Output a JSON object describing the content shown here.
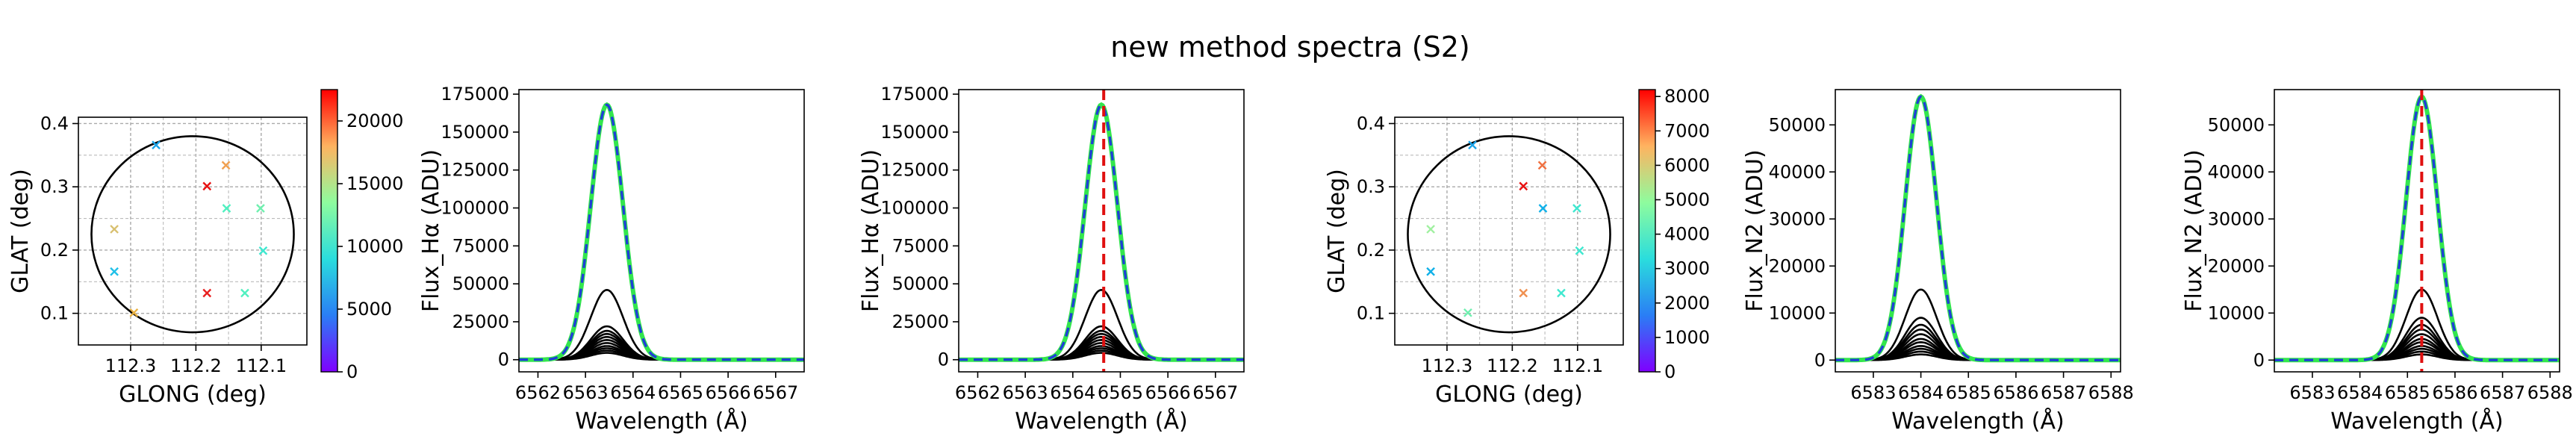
{
  "figure_title": "new method spectra (S2)",
  "chart_data": [
    {
      "id": "map_ha",
      "type": "scatter",
      "xlabel": "GLONG (deg)",
      "ylabel": "GLAT (deg)",
      "xlim": [
        112.38,
        112.03
      ],
      "ylim": [
        0.05,
        0.41
      ],
      "xticks": [
        112.3,
        112.2,
        112.1
      ],
      "yticks": [
        0.1,
        0.2,
        0.3,
        0.4
      ],
      "grid": true,
      "circle": {
        "cx": 112.205,
        "cy": 0.225,
        "r": 0.155
      },
      "points": [
        {
          "x": 112.261,
          "y": 0.366,
          "color": "#1aa3e8"
        },
        {
          "x": 112.154,
          "y": 0.334,
          "color": "#f0a050"
        },
        {
          "x": 112.183,
          "y": 0.301,
          "color": "#e81010"
        },
        {
          "x": 112.101,
          "y": 0.266,
          "color": "#70f0b0"
        },
        {
          "x": 112.153,
          "y": 0.266,
          "color": "#50f0c0"
        },
        {
          "x": 112.325,
          "y": 0.233,
          "color": "#d8c070"
        },
        {
          "x": 112.097,
          "y": 0.199,
          "color": "#40e8d0"
        },
        {
          "x": 112.325,
          "y": 0.166,
          "color": "#20c0e8"
        },
        {
          "x": 112.125,
          "y": 0.132,
          "color": "#50f0c0"
        },
        {
          "x": 112.183,
          "y": 0.132,
          "color": "#e82020"
        },
        {
          "x": 112.295,
          "y": 0.101,
          "color": "#e8b040"
        }
      ],
      "colorbar": {
        "min": 0,
        "max": 22500,
        "ticks": [
          0,
          5000,
          10000,
          15000,
          20000
        ]
      }
    },
    {
      "id": "flux_ha_a",
      "type": "line",
      "xlabel": "Wavelength (Å)",
      "ylabel": "Flux_Hα (ADU)",
      "xlim": [
        6561.6,
        6567.6
      ],
      "ylim": [
        -8000,
        178000
      ],
      "xticks": [
        6562,
        6563,
        6564,
        6565,
        6566,
        6567
      ],
      "yticks": [
        0,
        25000,
        50000,
        75000,
        100000,
        125000,
        150000,
        175000
      ],
      "center": 6563.45,
      "sigma": 0.34,
      "black_peaks": [
        46000,
        22000,
        19000,
        17000,
        15000,
        13000,
        11000,
        9000,
        7500,
        6000,
        4500
      ],
      "total_peak": 168000,
      "vline": null
    },
    {
      "id": "flux_ha_b",
      "type": "line",
      "xlabel": "Wavelength (Å)",
      "ylabel": "Flux_Hα (ADU)",
      "xlim": [
        6561.6,
        6567.6
      ],
      "ylim": [
        -8000,
        178000
      ],
      "xticks": [
        6562,
        6563,
        6564,
        6565,
        6566,
        6567
      ],
      "yticks": [
        0,
        25000,
        50000,
        75000,
        100000,
        125000,
        150000,
        175000
      ],
      "center": 6564.6,
      "sigma": 0.34,
      "black_peaks": [
        46000,
        22000,
        19000,
        17000,
        15000,
        13000,
        11000,
        9000,
        7500,
        6000,
        4500
      ],
      "total_peak": 168000,
      "vline": 6564.65
    },
    {
      "id": "map_n2",
      "type": "scatter",
      "xlabel": "GLONG (deg)",
      "ylabel": "GLAT (deg)",
      "xlim": [
        112.38,
        112.03
      ],
      "ylim": [
        0.05,
        0.41
      ],
      "xticks": [
        112.3,
        112.2,
        112.1
      ],
      "yticks": [
        0.1,
        0.2,
        0.3,
        0.4
      ],
      "grid": true,
      "circle": {
        "cx": 112.205,
        "cy": 0.225,
        "r": 0.155
      },
      "points": [
        {
          "x": 112.261,
          "y": 0.366,
          "color": "#1aa3e8"
        },
        {
          "x": 112.154,
          "y": 0.334,
          "color": "#f07040"
        },
        {
          "x": 112.183,
          "y": 0.301,
          "color": "#e81010"
        },
        {
          "x": 112.101,
          "y": 0.266,
          "color": "#40e8d0"
        },
        {
          "x": 112.153,
          "y": 0.266,
          "color": "#10b0e8"
        },
        {
          "x": 112.325,
          "y": 0.233,
          "color": "#a0f0a0"
        },
        {
          "x": 112.097,
          "y": 0.199,
          "color": "#40e8d0"
        },
        {
          "x": 112.325,
          "y": 0.166,
          "color": "#10b0e8"
        },
        {
          "x": 112.125,
          "y": 0.132,
          "color": "#40e8d0"
        },
        {
          "x": 112.183,
          "y": 0.132,
          "color": "#f09050"
        },
        {
          "x": 112.268,
          "y": 0.101,
          "color": "#70f0b0"
        }
      ],
      "colorbar": {
        "min": 0,
        "max": 8200,
        "ticks": [
          0,
          1000,
          2000,
          3000,
          4000,
          5000,
          6000,
          7000,
          8000
        ]
      }
    },
    {
      "id": "flux_n2_a",
      "type": "line",
      "xlabel": "Wavelength (Å)",
      "ylabel": "Flux_N2 (ADU)",
      "xlim": [
        6582.2,
        6588.2
      ],
      "ylim": [
        -2500,
        57500
      ],
      "xticks": [
        6583,
        6584,
        6585,
        6586,
        6587,
        6588
      ],
      "yticks": [
        0,
        10000,
        20000,
        30000,
        40000,
        50000
      ],
      "center": 6584.0,
      "sigma": 0.33,
      "black_peaks": [
        15000,
        9000,
        7500,
        6500,
        5500,
        4500,
        3800,
        3000,
        2400,
        1800,
        1200
      ],
      "total_peak": 56000,
      "vline": null
    },
    {
      "id": "flux_n2_b",
      "type": "line",
      "xlabel": "Wavelength (Å)",
      "ylabel": "Flux_N2 (ADU)",
      "xlim": [
        6582.2,
        6588.2
      ],
      "ylim": [
        -2500,
        57500
      ],
      "xticks": [
        6583,
        6584,
        6585,
        6586,
        6587,
        6588
      ],
      "yticks": [
        0,
        10000,
        20000,
        30000,
        40000,
        50000
      ],
      "center": 6585.3,
      "sigma": 0.33,
      "black_peaks": [
        15000,
        9000,
        7500,
        6500,
        5500,
        4500,
        3800,
        3000,
        2400,
        1800,
        1200
      ],
      "total_peak": 56000,
      "vline": 6585.3
    }
  ]
}
